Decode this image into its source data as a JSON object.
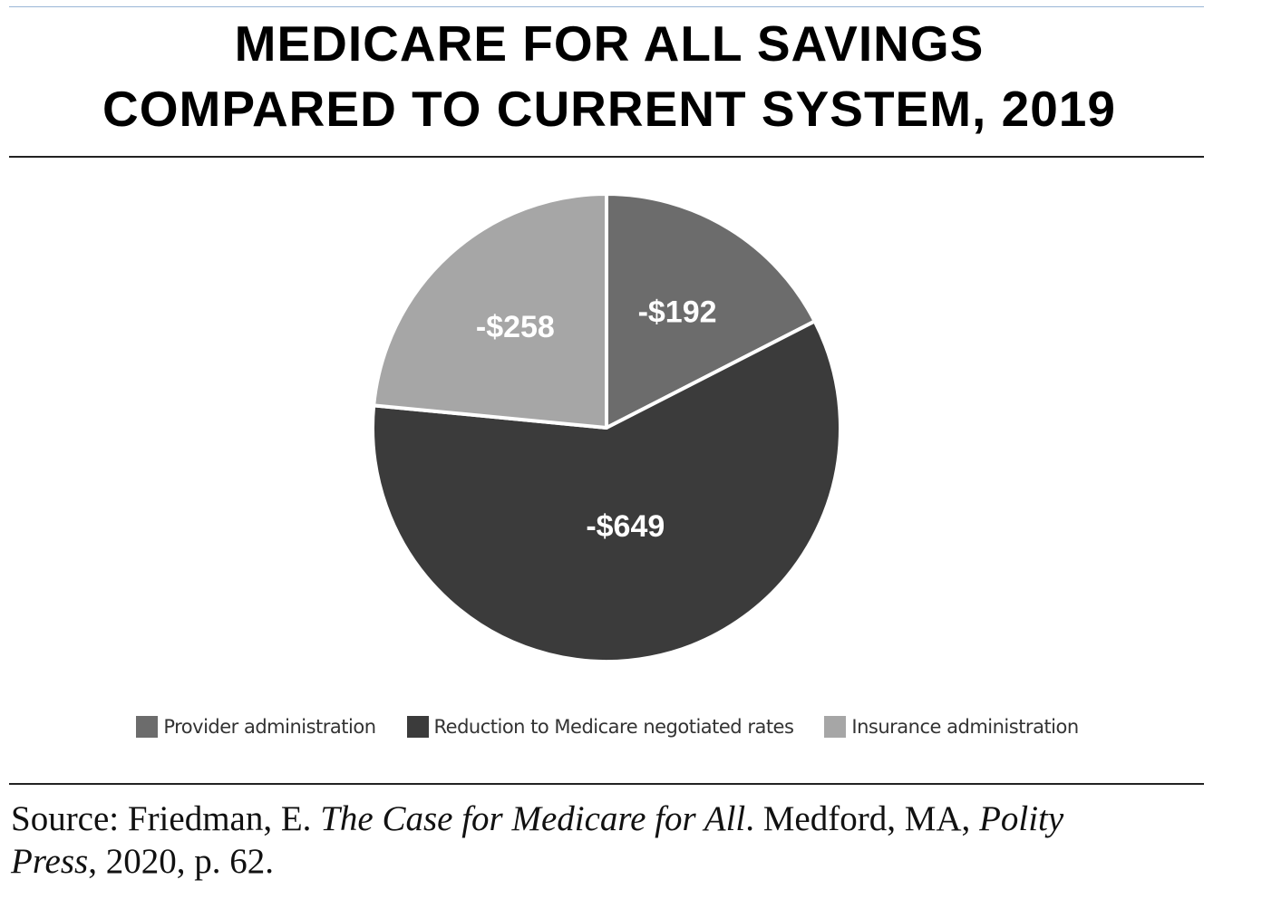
{
  "chart_data": {
    "type": "pie",
    "title_lines": [
      "MEDICARE FOR ALL SAVINGS",
      "COMPARED TO CURRENT SYSTEM, 2019"
    ],
    "slices": [
      {
        "name": "Provider administration",
        "value": 192,
        "label": "-$192",
        "color": "#6c6c6c"
      },
      {
        "name": "Reduction to Medicare negotiated rates",
        "value": 649,
        "label": "-$649",
        "color": "#3b3b3b"
      },
      {
        "name": "Insurance administration",
        "value": 258,
        "label": "-$258",
        "color": "#a6a6a6"
      }
    ],
    "legend_position": "bottom",
    "label_color": "#ffffff"
  },
  "source": {
    "prefix": "Source: Friedman, E. ",
    "book_title": "The Case for Medicare for All",
    "middle": ". Medford, MA, ",
    "publisher_a": "Polity",
    "publisher_b": "Press",
    "suffix": ", 2020, p. 62."
  }
}
